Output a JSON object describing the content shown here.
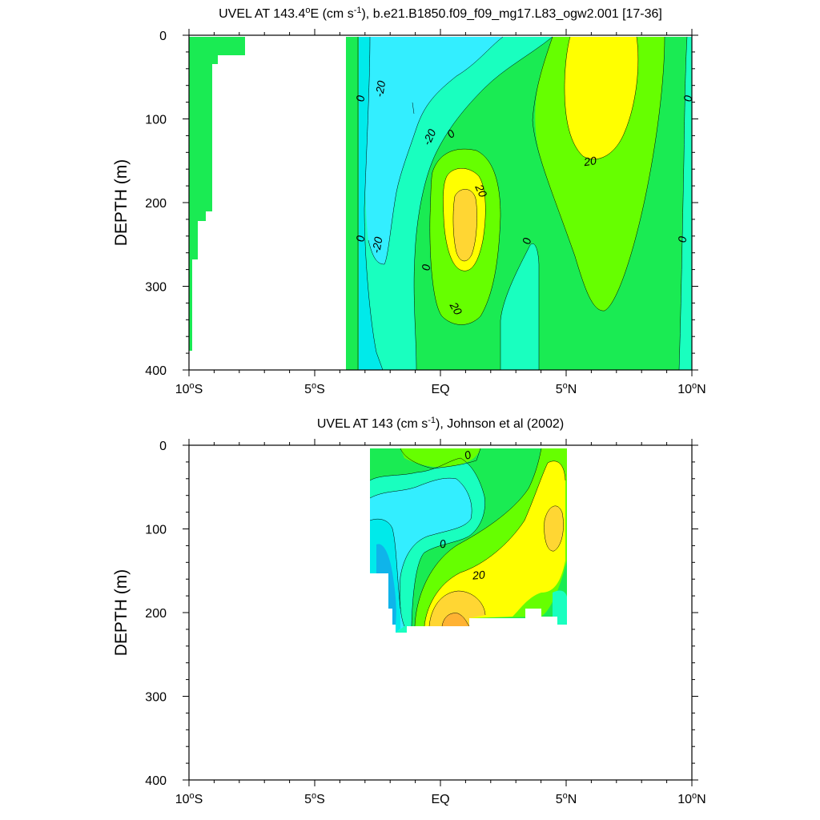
{
  "palette": {
    "c_m30": "#0fb4ea",
    "c_m20": "#00eaea",
    "c_m10": "#33eeff",
    "c_0": "#19ffbf",
    "c_10": "#66ff00",
    "c_20": "#1aeb53",
    "c_30": "#ffff00",
    "c_40": "#ffd633",
    "c_50": "#ffb233"
  },
  "chart_data": [
    {
      "type": "contour",
      "title": "UVEL AT 143.4°E (cm s⁻¹), b.e21.B1850.f09_f09_mg17.L83_ogw2.001 [17-36]",
      "title_parts": {
        "pre": "UVEL AT 143.4",
        "deg": "o",
        "mid": "E (cm s",
        "sup": "-1",
        "post": "), b.e21.B1850.f09_f09_mg17.L83_ogw2.001 [17-36]"
      },
      "ylabel": "DEPTH (m)",
      "xlabel": "",
      "xlim": [
        -10,
        10
      ],
      "ylim": [
        400,
        0
      ],
      "y_ticks": [
        "0",
        "100",
        "200",
        "300",
        "400"
      ],
      "x_ticks": [
        {
          "num": "10",
          "deg": "o",
          "hem": "S"
        },
        {
          "num": "5",
          "deg": "o",
          "hem": "S"
        },
        {
          "num": "EQ",
          "deg": "",
          "hem": ""
        },
        {
          "num": "5",
          "deg": "o",
          "hem": "N"
        },
        {
          "num": "10",
          "deg": "o",
          "hem": "N"
        }
      ],
      "contour_labels": [
        "0",
        "-20",
        "-20",
        "0",
        "20",
        "0",
        "20",
        "0",
        "-20",
        "0",
        "0",
        "0",
        "20",
        "0"
      ],
      "regions": {
        "land_west": [
          -10,
          -4.9
        ],
        "westward_flow_core_latitude": -1.6,
        "euc_core": {
          "lat": 0.8,
          "depth": 230,
          "max": 40
        },
        "nec_core": {
          "lat": 6.6,
          "depth": 70,
          "max": 30
        }
      }
    },
    {
      "type": "contour",
      "title": "UVEL AT 143 (cm s⁻¹), Johnson et al (2002)",
      "title_parts": {
        "pre": "UVEL AT 143 (cm s",
        "sup": "-1",
        "post": "), Johnson et al (2002)"
      },
      "ylabel": "DEPTH (m)",
      "xlabel": "",
      "xlim": [
        -10,
        10
      ],
      "ylim": [
        400,
        0
      ],
      "y_ticks": [
        "0",
        "100",
        "200",
        "300",
        "400"
      ],
      "x_ticks": [
        {
          "num": "10",
          "deg": "o",
          "hem": "S"
        },
        {
          "num": "5",
          "deg": "o",
          "hem": "S"
        },
        {
          "num": "EQ",
          "deg": "",
          "hem": ""
        },
        {
          "num": "5",
          "deg": "o",
          "hem": "N"
        },
        {
          "num": "10",
          "deg": "o",
          "hem": "N"
        }
      ],
      "contour_labels": [
        "0",
        "0",
        "20"
      ],
      "data_extent": {
        "lat": [
          -2.8,
          5
        ],
        "depth": [
          0,
          225
        ]
      },
      "regions": {
        "euc_core": {
          "lat": 0.6,
          "depth": 210,
          "max": 50
        },
        "nec_core": {
          "lat": 4.3,
          "depth": 90,
          "max": 40
        }
      }
    }
  ]
}
